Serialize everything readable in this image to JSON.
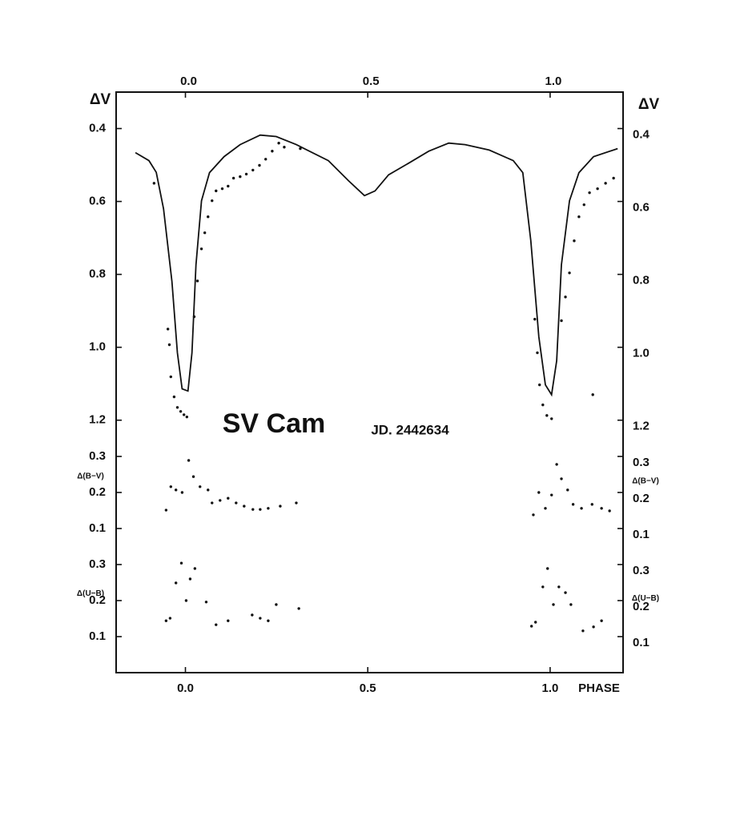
{
  "chart_data": [
    {
      "type": "scatter",
      "title": "SV Cam",
      "subtitle": "JD. 2442634",
      "ylabel": "ΔV",
      "xaxis_position": "top",
      "xlim": [
        -0.19,
        1.2
      ],
      "xticks": [
        {
          "value": 0,
          "label": "0.0"
        },
        0.5,
        {
          "value": 1,
          "label": "1.0"
        }
      ],
      "ylim": [
        1.25,
        0.3
      ],
      "yticks": [
        0.4,
        0.6,
        0.8,
        {
          "value": 1,
          "label": "1.0"
        },
        1.2
      ],
      "series": [
        {
          "mark": "line",
          "color": "#111111",
          "x": [
            -0.137,
            -0.1,
            -0.08,
            -0.06,
            -0.037,
            -0.022,
            -0.009,
            0.007,
            0.018,
            0.029,
            0.044,
            0.066,
            0.106,
            0.15,
            0.205,
            0.249,
            0.304,
            0.392,
            0.447,
            0.491,
            0.52,
            0.557,
            0.612,
            0.667,
            0.722,
            0.767,
            0.833,
            0.899,
            0.925,
            0.947,
            0.969,
            0.987,
            1.004,
            1.018,
            1.031,
            1.053,
            1.079,
            1.119,
            1.185
          ],
          "values": [
            0.466,
            0.488,
            0.52,
            0.62,
            0.82,
            1.015,
            1.114,
            1.12,
            1.015,
            0.774,
            0.598,
            0.521,
            0.477,
            0.444,
            0.418,
            0.422,
            0.444,
            0.488,
            0.543,
            0.584,
            0.571,
            0.527,
            0.495,
            0.462,
            0.44,
            0.444,
            0.459,
            0.488,
            0.521,
            0.708,
            0.971,
            1.103,
            1.13,
            1.037,
            0.774,
            0.598,
            0.521,
            0.477,
            0.455
          ]
        },
        {
          "mark": "dot",
          "color": "#111111",
          "x": [
            -0.086,
            -0.048,
            -0.044,
            -0.04,
            -0.031,
            -0.022,
            -0.013,
            -0.004,
            0.004,
            0.024,
            0.033,
            0.044,
            0.053,
            0.062,
            0.073,
            0.084,
            0.101,
            0.117,
            0.132,
            0.15,
            0.167,
            0.185,
            0.203,
            0.22,
            0.238,
            0.256,
            0.271,
            0.315,
            0.958,
            0.965,
            0.971,
            0.98,
            0.991,
            1.004,
            1.031,
            1.042,
            1.053,
            1.066,
            1.079,
            1.093,
            1.108,
            1.13,
            1.152,
            1.174,
            1.117
          ],
          "values": [
            0.55,
            0.95,
            0.993,
            1.081,
            1.136,
            1.165,
            1.176,
            1.185,
            1.191,
            0.916,
            0.818,
            0.73,
            0.686,
            0.642,
            0.598,
            0.571,
            0.565,
            0.558,
            0.536,
            0.532,
            0.525,
            0.514,
            0.501,
            0.484,
            0.462,
            0.44,
            0.451,
            0.455,
            0.923,
            1.015,
            1.103,
            1.158,
            1.187,
            1.196,
            0.927,
            0.862,
            0.796,
            0.708,
            0.642,
            0.609,
            0.576,
            0.565,
            0.55,
            0.536,
            1.13
          ]
        }
      ]
    },
    {
      "type": "scatter",
      "ylabel": "Δ(B−V)",
      "xlim": [
        -0.19,
        1.2
      ],
      "ylim": [
        0.05,
        0.35
      ],
      "yticks": [
        0.3,
        0.2,
        0.1
      ],
      "series": [
        {
          "mark": "dot",
          "color": "#111111",
          "x": [
            -0.053,
            -0.04,
            -0.026,
            -0.009,
            0.009,
            0.022,
            0.04,
            0.062,
            0.073,
            0.095,
            0.117,
            0.139,
            0.161,
            0.185,
            0.205,
            0.227,
            0.26,
            0.304,
            0.954,
            0.969,
            0.987,
            1.004,
            1.018,
            1.031,
            1.048,
            1.063,
            1.086,
            1.115,
            1.141,
            1.163
          ],
          "values": [
            0.151,
            0.216,
            0.207,
            0.2,
            0.289,
            0.244,
            0.216,
            0.207,
            0.171,
            0.178,
            0.184,
            0.171,
            0.162,
            0.153,
            0.153,
            0.156,
            0.162,
            0.171,
            0.138,
            0.2,
            0.156,
            0.193,
            0.278,
            0.238,
            0.207,
            0.167,
            0.156,
            0.167,
            0.156,
            0.149
          ]
        }
      ]
    },
    {
      "type": "scatter",
      "ylabel": "Δ(U−B)",
      "xlabel": "PHASE",
      "xaxis_position": "bottom",
      "xlim": [
        -0.19,
        1.2
      ],
      "xticks": [
        {
          "value": 0,
          "label": "0.0"
        },
        0.5,
        {
          "value": 1,
          "label": "1.0"
        }
      ],
      "ylim": [
        0,
        0.35
      ],
      "yticks": [
        0.3,
        0.2,
        0.1
      ],
      "series": [
        {
          "mark": "dot",
          "color": "#111111",
          "x": [
            -0.053,
            -0.042,
            -0.026,
            -0.011,
            0.002,
            0.013,
            0.026,
            0.057,
            0.084,
            0.117,
            0.183,
            0.205,
            0.227,
            0.249,
            0.311,
            0.949,
            0.96,
            0.98,
            0.993,
            1.009,
            1.024,
            1.042,
            1.057,
            1.09,
            1.119,
            1.141
          ],
          "values": [
            0.144,
            0.151,
            0.249,
            0.304,
            0.2,
            0.26,
            0.289,
            0.196,
            0.133,
            0.144,
            0.16,
            0.151,
            0.144,
            0.189,
            0.178,
            0.129,
            0.14,
            0.238,
            0.289,
            0.189,
            0.238,
            0.222,
            0.189,
            0.116,
            0.127,
            0.144
          ]
        }
      ]
    }
  ]
}
